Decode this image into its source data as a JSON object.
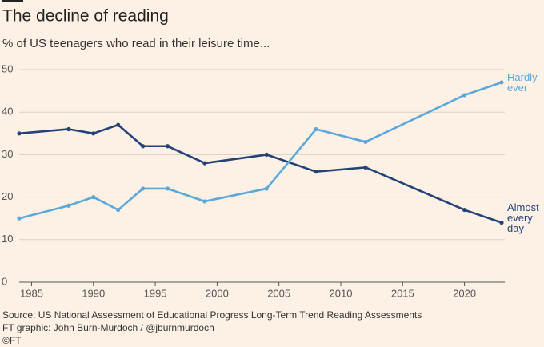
{
  "chart_data": {
    "type": "line",
    "title": "The decline of reading",
    "subtitle": "% of US teenagers who read in their leisure time...",
    "source": "Source: US National Assessment of Educational Progress Long-Term Trend Reading Assessments",
    "credit": "FT graphic: John Burn-Murdoch / @jburnmurdoch",
    "copyright": "©FT",
    "x": [
      1984,
      1988,
      1990,
      1992,
      1994,
      1996,
      1999,
      2004,
      2008,
      2012,
      2020,
      2023
    ],
    "series": [
      {
        "name": "Almost every day",
        "color": "#24427a",
        "values": [
          35,
          36,
          35,
          37,
          32,
          32,
          28,
          30,
          26,
          27,
          17,
          14
        ]
      },
      {
        "name": "Hardly ever",
        "color": "#5aa8da",
        "values": [
          15,
          18,
          20,
          17,
          22,
          22,
          19,
          22,
          36,
          33,
          44,
          47
        ]
      }
    ],
    "xlim": [
      1984,
      2023
    ],
    "xticks": [
      1985,
      1990,
      1995,
      2000,
      2005,
      2010,
      2015,
      2020
    ],
    "ylim": [
      0,
      50
    ],
    "yticks": [
      0,
      10,
      20,
      30,
      40,
      50
    ],
    "grid": true
  }
}
